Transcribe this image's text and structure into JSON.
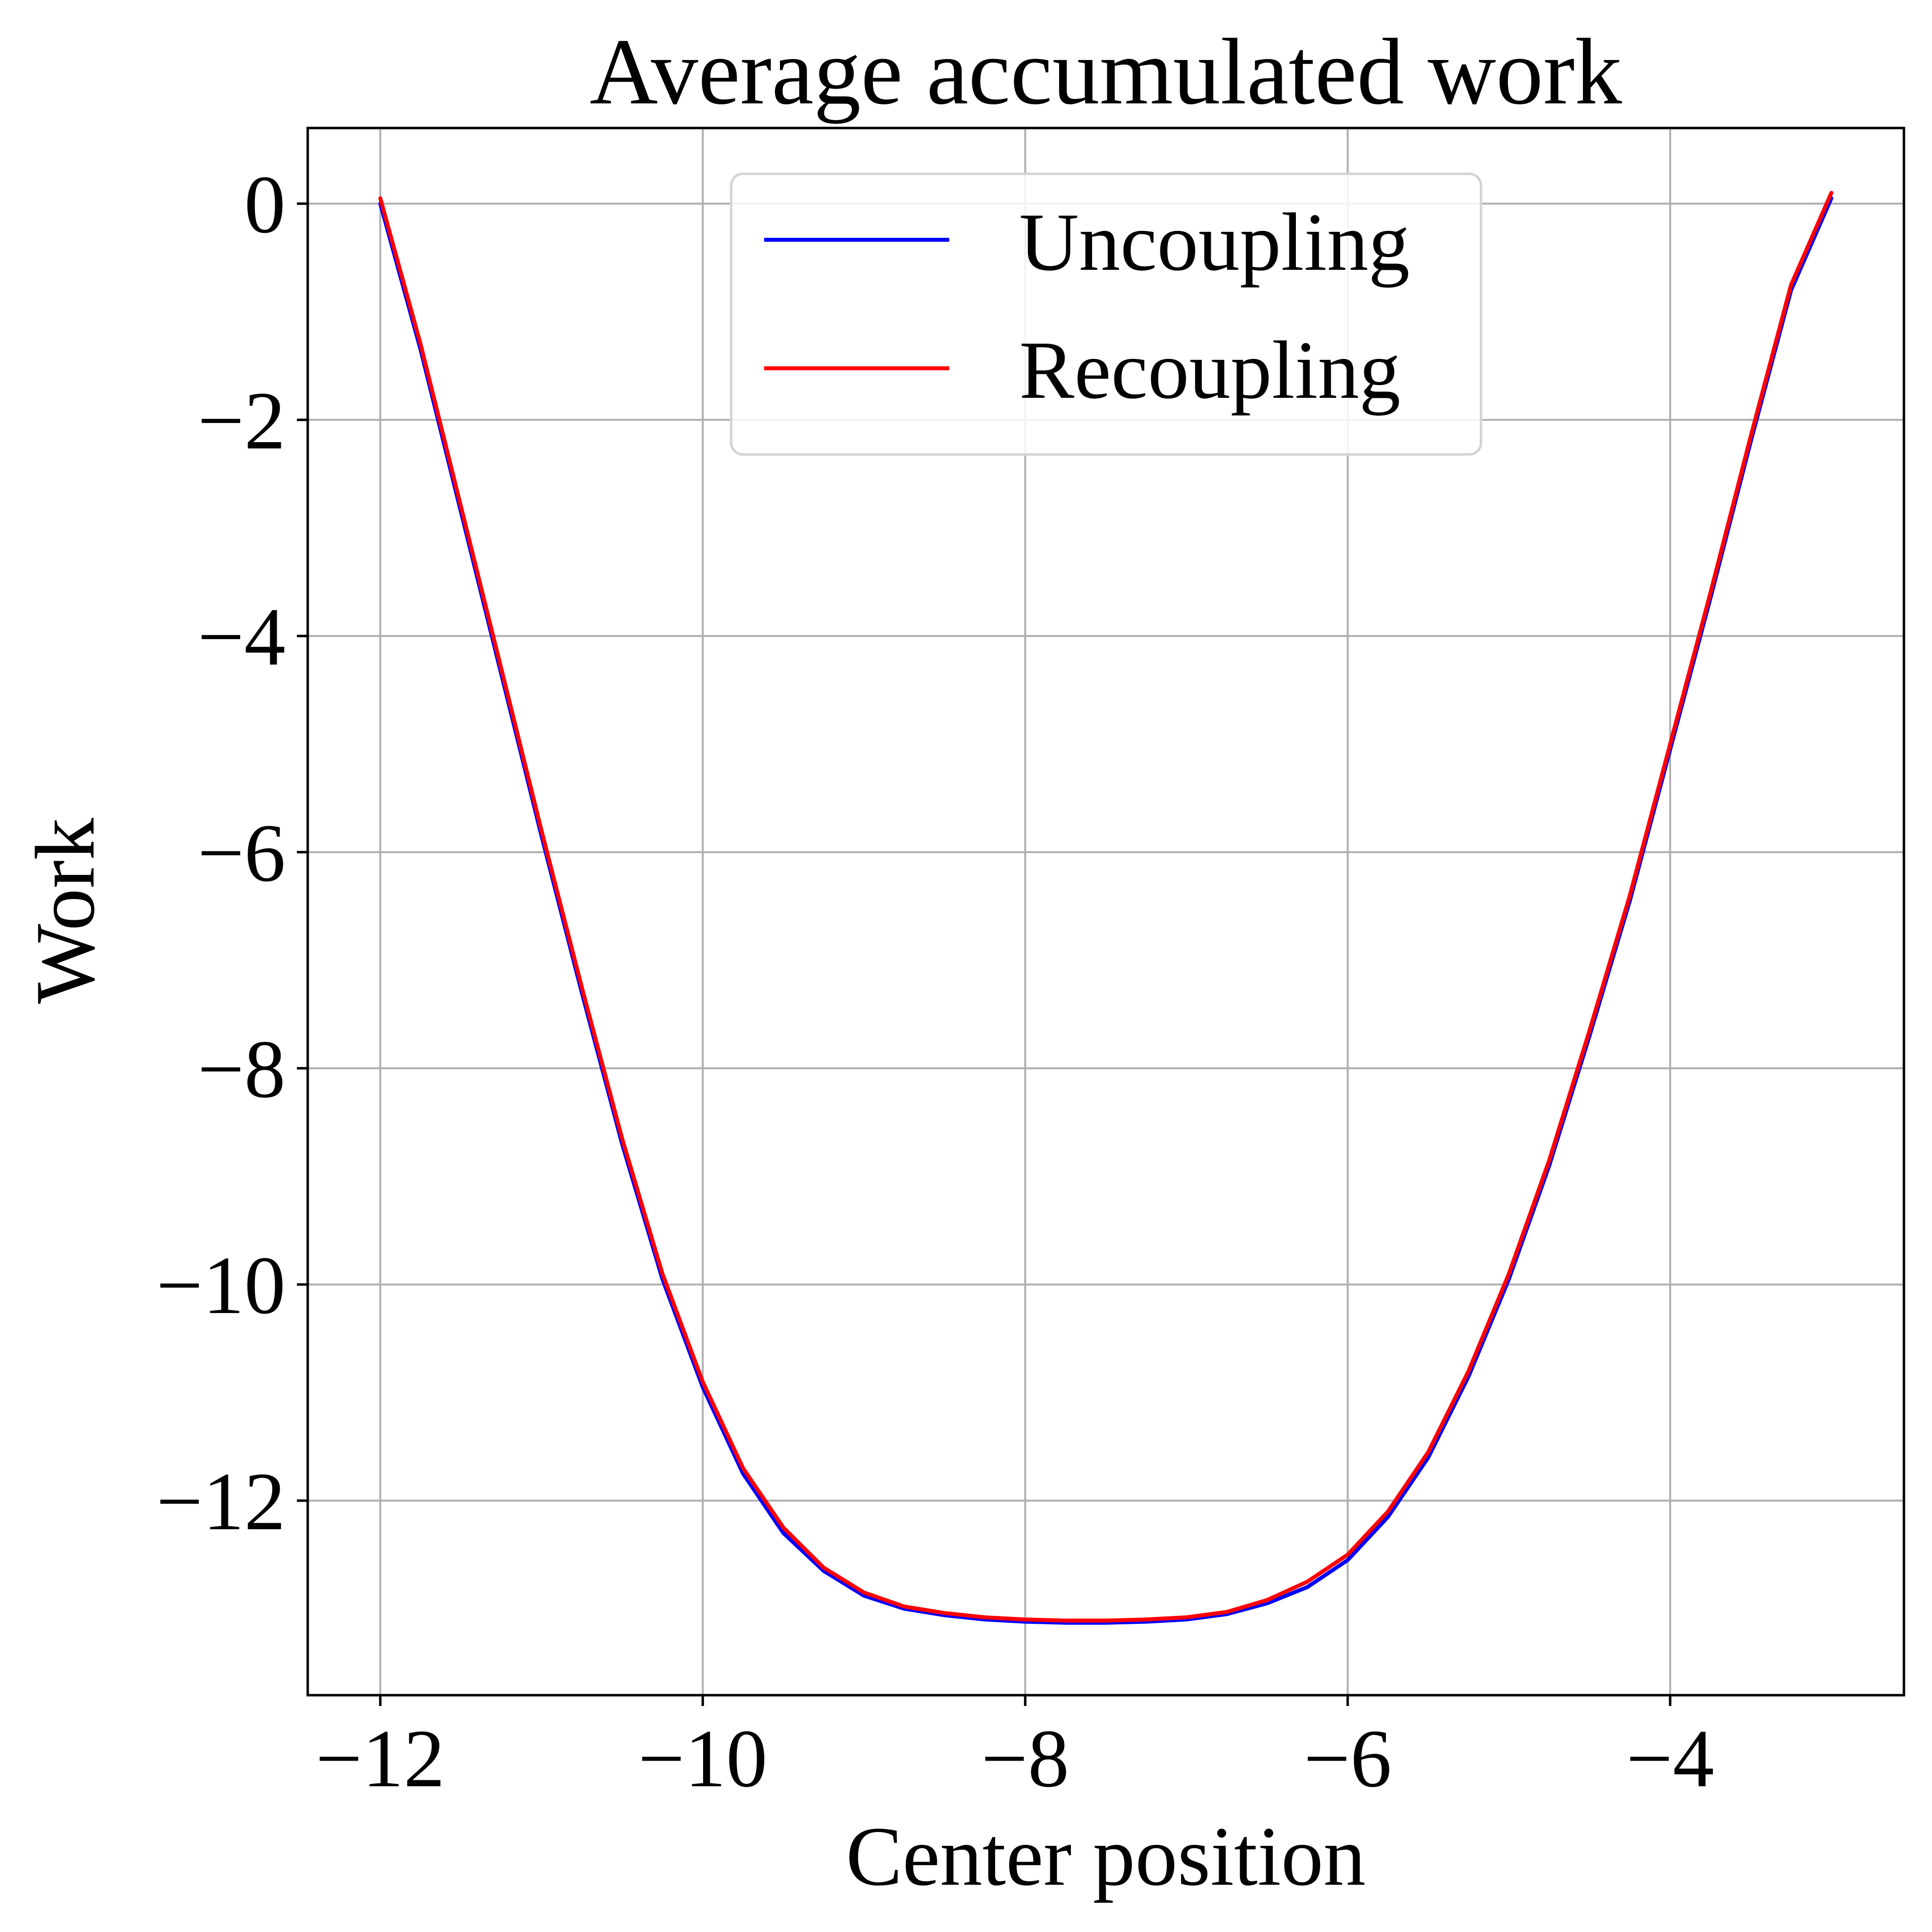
{
  "chart_data": {
    "type": "line",
    "title": "Average accumulated work",
    "xlabel": "Center position",
    "ylabel": "Work",
    "xlim": [
      -12.45,
      -2.55
    ],
    "ylim": [
      -13.8,
      0.7
    ],
    "xticks": [
      -12,
      -10,
      -8,
      -6,
      -4
    ],
    "yticks": [
      0,
      -2,
      -4,
      -6,
      -8,
      -10,
      -12
    ],
    "xtick_labels": [
      "−12",
      "−10",
      "−8",
      "−6",
      "−4"
    ],
    "ytick_labels": [
      "0",
      "−2",
      "−4",
      "−6",
      "−8",
      "−10",
      "−12"
    ],
    "grid": true,
    "legend_position": "upper-center",
    "series": [
      {
        "name": "Uncoupling",
        "color": "#0000ff",
        "x": [
          -12.0,
          -11.75,
          -11.5,
          -11.25,
          -11.0,
          -10.75,
          -10.5,
          -10.25,
          -10.0,
          -9.75,
          -9.5,
          -9.25,
          -9.0,
          -8.75,
          -8.5,
          -8.25,
          -8.0,
          -7.75,
          -7.5,
          -7.25,
          -7.0,
          -6.75,
          -6.5,
          -6.25,
          -6.0,
          -5.75,
          -5.5,
          -5.25,
          -5.0,
          -4.75,
          -4.5,
          -4.25,
          -4.0,
          -3.75,
          -3.5,
          -3.25,
          -3.0
        ],
        "y": [
          0.0,
          -1.35,
          -2.85,
          -4.35,
          -5.85,
          -7.3,
          -8.7,
          -9.95,
          -10.95,
          -11.75,
          -12.3,
          -12.65,
          -12.88,
          -13.0,
          -13.06,
          -13.1,
          -13.12,
          -13.13,
          -13.13,
          -13.12,
          -13.1,
          -13.05,
          -12.95,
          -12.8,
          -12.55,
          -12.15,
          -11.6,
          -10.85,
          -9.95,
          -8.9,
          -7.7,
          -6.45,
          -5.05,
          -3.65,
          -2.2,
          -0.8,
          0.05
        ]
      },
      {
        "name": "Recoupling",
        "color": "#ff0000",
        "x": [
          -12.0,
          -11.75,
          -11.5,
          -11.25,
          -11.0,
          -10.75,
          -10.5,
          -10.25,
          -10.0,
          -9.75,
          -9.5,
          -9.25,
          -9.0,
          -8.75,
          -8.5,
          -8.25,
          -8.0,
          -7.75,
          -7.5,
          -7.25,
          -7.0,
          -6.75,
          -6.5,
          -6.25,
          -6.0,
          -5.75,
          -5.5,
          -5.25,
          -5.0,
          -4.75,
          -4.5,
          -4.25,
          -4.0,
          -3.75,
          -3.5,
          -3.25,
          -3.0
        ],
        "y": [
          0.05,
          -1.3,
          -2.8,
          -4.3,
          -5.8,
          -7.25,
          -8.65,
          -9.9,
          -10.9,
          -11.7,
          -12.25,
          -12.62,
          -12.85,
          -12.98,
          -13.04,
          -13.08,
          -13.1,
          -13.11,
          -13.11,
          -13.1,
          -13.08,
          -13.03,
          -12.92,
          -12.75,
          -12.5,
          -12.1,
          -11.55,
          -10.8,
          -9.9,
          -8.85,
          -7.65,
          -6.4,
          -5.0,
          -3.6,
          -2.15,
          -0.75,
          0.1
        ]
      }
    ]
  }
}
